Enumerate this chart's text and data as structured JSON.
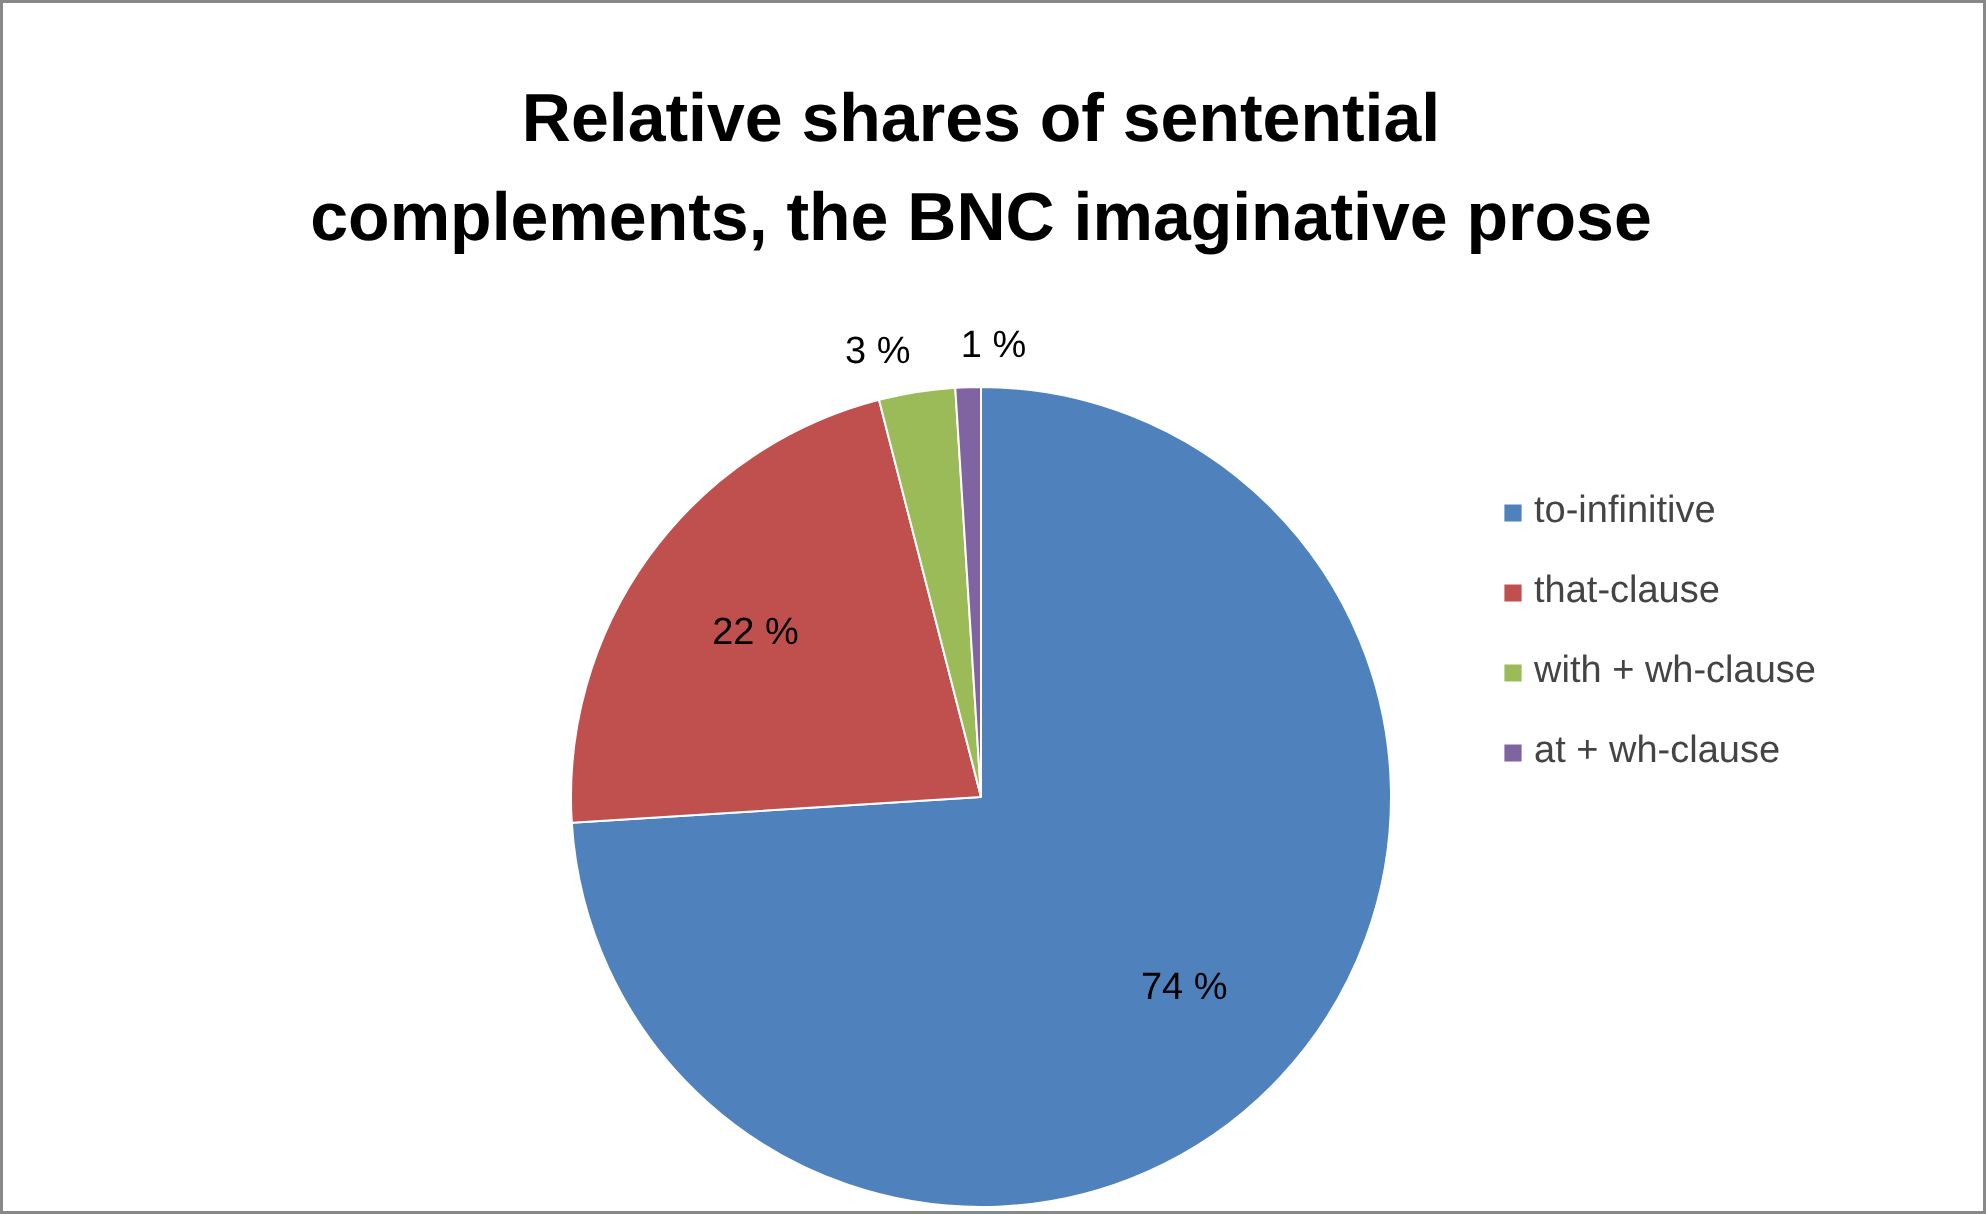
{
  "chart_data": {
    "type": "pie",
    "title": "Relative shares of sentential\ncomplements, the BNC imaginative prose",
    "categories": [
      "to-infinitive",
      "that-clause",
      "with + wh-clause",
      "at + wh-clause"
    ],
    "values": [
      74,
      22,
      3,
      1
    ],
    "colors": [
      "#4f81bd",
      "#c0504d",
      "#9bbb59",
      "#8064a2"
    ],
    "value_labels": [
      "74 %",
      "22 %",
      "3 %",
      "1 %"
    ],
    "legend": "right"
  }
}
